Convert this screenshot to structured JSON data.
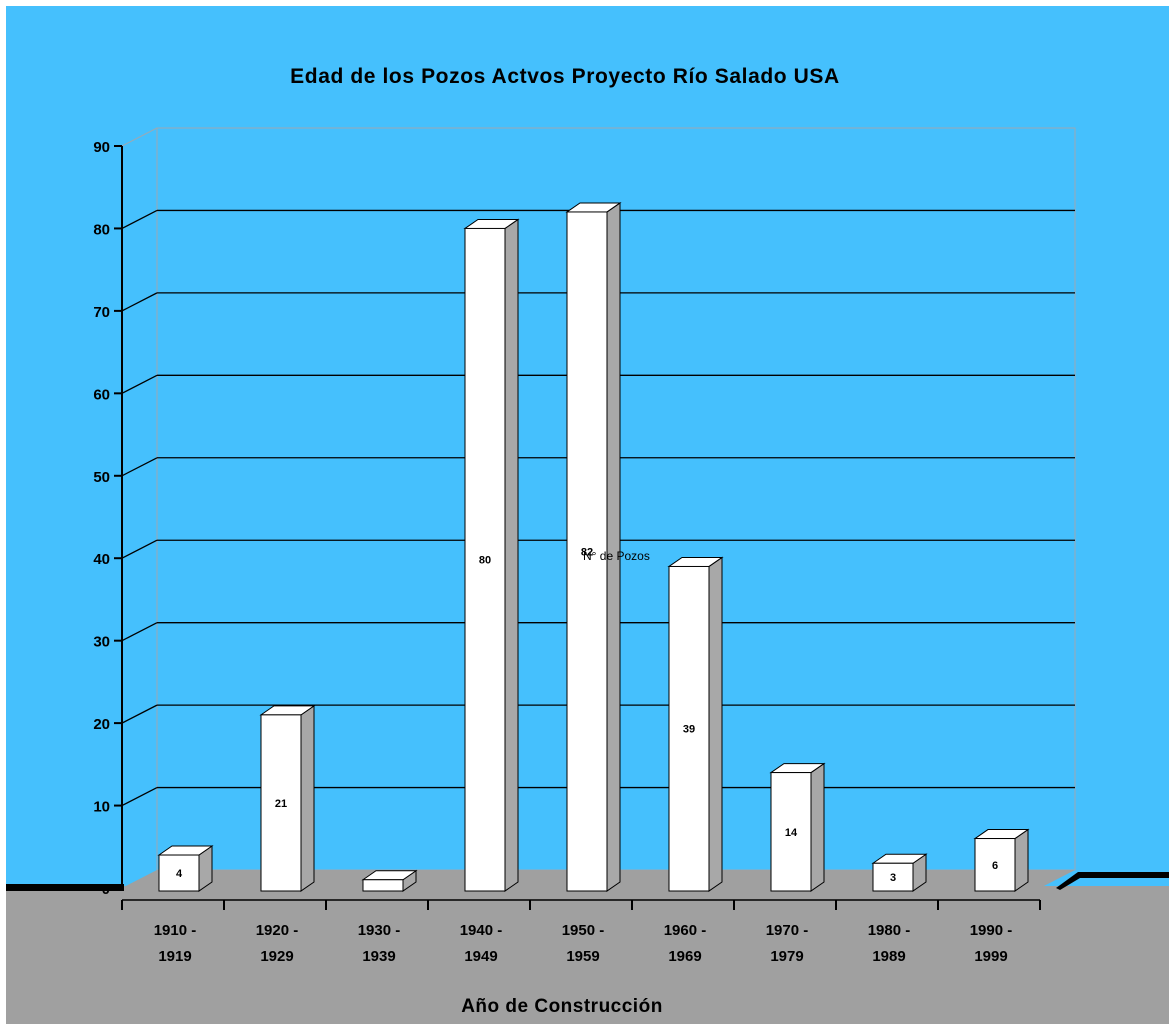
{
  "chart_data": {
    "type": "bar",
    "title": "Edad de los Pozos Actvos Proyecto Río Salado USA",
    "xlabel": "Año de Construcción",
    "ylabel": "",
    "ylim": [
      0,
      90
    ],
    "yticks": [
      "0",
      "10",
      "20",
      "30",
      "40",
      "50",
      "60",
      "70",
      "80",
      "90"
    ],
    "categories": [
      [
        "1910 -",
        "1919"
      ],
      [
        "1920 -",
        "1929"
      ],
      [
        "1930 -",
        "1939"
      ],
      [
        "1940 -",
        "1949"
      ],
      [
        "1950 -",
        "1959"
      ],
      [
        "1960 -",
        "1969"
      ],
      [
        "1970 -",
        "1979"
      ],
      [
        "1980 -",
        "1989"
      ],
      [
        "1990 -",
        "1999"
      ]
    ],
    "series": [
      {
        "name": "N° de Pozos",
        "values": [
          4,
          21,
          1,
          80,
          82,
          39,
          14,
          3,
          6
        ],
        "labels": [
          "4",
          "21",
          "",
          "80",
          "82",
          "39",
          "14",
          "3",
          "6"
        ]
      }
    ],
    "grid": true,
    "style": "3d",
    "colors": {
      "background": "#45c0fd",
      "floor": "#a0a0a0",
      "bar_front": "#ffffff",
      "bar_side": "#a8a8a8",
      "bar_top": "#ffffff",
      "gridline": "#000000",
      "outline": "#000000"
    }
  }
}
